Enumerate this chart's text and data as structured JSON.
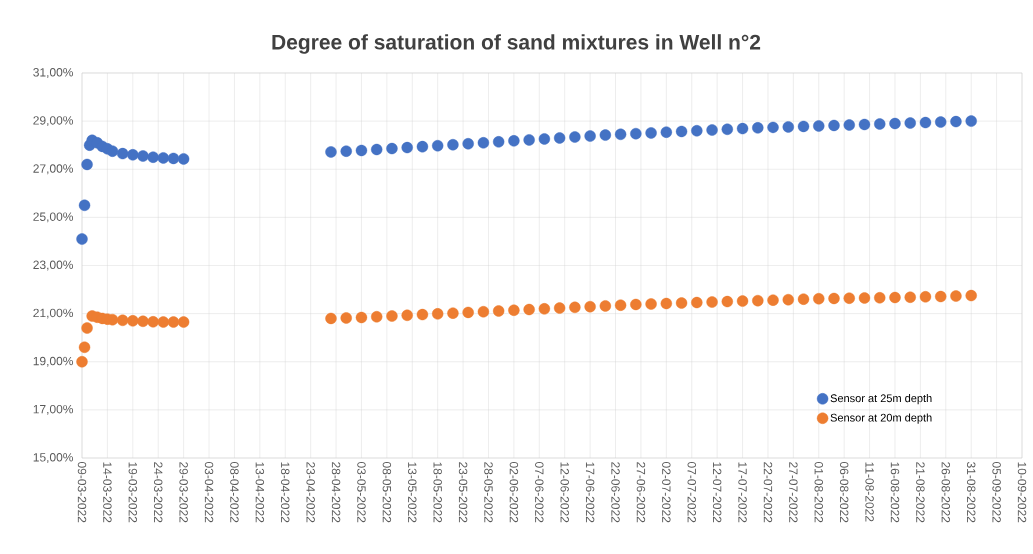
{
  "chart_data": {
    "type": "scatter",
    "title": "Degree of saturation of sand mixtures in Well n°2",
    "x": [
      "2022-03-09",
      "2022-03-09T12:00",
      "2022-03-10",
      "2022-03-10T12:00",
      "2022-03-11",
      "2022-03-12",
      "2022-03-13",
      "2022-03-14",
      "2022-03-15",
      "2022-03-17",
      "2022-03-19",
      "2022-03-21",
      "2022-03-23",
      "2022-03-25",
      "2022-03-27",
      "2022-03-29",
      "2022-04-27",
      "2022-04-30",
      "2022-05-03",
      "2022-05-06",
      "2022-05-09",
      "2022-05-12",
      "2022-05-15",
      "2022-05-18",
      "2022-05-21",
      "2022-05-24",
      "2022-05-27",
      "2022-05-30",
      "2022-06-02",
      "2022-06-05",
      "2022-06-08",
      "2022-06-11",
      "2022-06-14",
      "2022-06-17",
      "2022-06-20",
      "2022-06-23",
      "2022-06-26",
      "2022-06-29",
      "2022-07-02",
      "2022-07-05",
      "2022-07-08",
      "2022-07-11",
      "2022-07-14",
      "2022-07-17",
      "2022-07-20",
      "2022-07-23",
      "2022-07-26",
      "2022-07-29",
      "2022-08-01",
      "2022-08-04",
      "2022-08-07",
      "2022-08-10",
      "2022-08-13",
      "2022-08-16",
      "2022-08-19",
      "2022-08-22",
      "2022-08-25",
      "2022-08-28",
      "2022-08-31"
    ],
    "series": [
      {
        "name": "Sensor at 25m depth",
        "color": "#4472c4",
        "values": [
          24.1,
          25.5,
          27.2,
          28.0,
          28.2,
          28.1,
          27.95,
          27.85,
          27.75,
          27.65,
          27.6,
          27.55,
          27.5,
          27.47,
          27.45,
          27.43,
          27.72,
          27.75,
          27.78,
          27.82,
          27.86,
          27.9,
          27.94,
          27.98,
          28.02,
          28.06,
          28.1,
          28.14,
          28.18,
          28.22,
          28.26,
          28.3,
          28.34,
          28.38,
          28.42,
          28.45,
          28.48,
          28.51,
          28.54,
          28.57,
          28.6,
          28.63,
          28.66,
          28.69,
          28.72,
          28.74,
          28.76,
          28.78,
          28.8,
          28.82,
          28.84,
          28.86,
          28.88,
          28.9,
          28.92,
          28.94,
          28.96,
          28.98,
          29.0
        ]
      },
      {
        "name": "Sensor at 20m depth",
        "color": "#ed7d31",
        "values": [
          19.0,
          19.6,
          20.4,
          null,
          20.9,
          20.85,
          20.8,
          20.77,
          20.75,
          20.72,
          20.7,
          20.68,
          20.66,
          20.65,
          20.65,
          20.65,
          20.8,
          20.82,
          20.84,
          20.87,
          20.9,
          20.93,
          20.96,
          20.99,
          21.02,
          21.05,
          21.08,
          21.11,
          21.14,
          21.17,
          21.2,
          21.23,
          21.26,
          21.29,
          21.32,
          21.35,
          21.38,
          21.4,
          21.42,
          21.44,
          21.46,
          21.48,
          21.5,
          21.52,
          21.54,
          21.56,
          21.58,
          21.6,
          21.62,
          21.63,
          21.64,
          21.65,
          21.66,
          21.67,
          21.68,
          21.7,
          21.71,
          21.73,
          21.75
        ]
      }
    ],
    "xlim": [
      "2022-03-09",
      "2022-09-10"
    ],
    "xticks": [
      {
        "value": "2022-03-09",
        "label": "09-03-2022"
      },
      {
        "value": "2022-03-14",
        "label": "14-03-2022"
      },
      {
        "value": "2022-03-19",
        "label": "19-03-2022"
      },
      {
        "value": "2022-03-24",
        "label": "24-03-2022"
      },
      {
        "value": "2022-03-29",
        "label": "29-03-2022"
      },
      {
        "value": "2022-04-03",
        "label": "03-04-2022"
      },
      {
        "value": "2022-04-08",
        "label": "08-04-2022"
      },
      {
        "value": "2022-04-13",
        "label": "13-04-2022"
      },
      {
        "value": "2022-04-18",
        "label": "18-04-2022"
      },
      {
        "value": "2022-04-23",
        "label": "23-04-2022"
      },
      {
        "value": "2022-04-28",
        "label": "28-04-2022"
      },
      {
        "value": "2022-05-03",
        "label": "03-05-2022"
      },
      {
        "value": "2022-05-08",
        "label": "08-05-2022"
      },
      {
        "value": "2022-05-13",
        "label": "13-05-2022"
      },
      {
        "value": "2022-05-18",
        "label": "18-05-2022"
      },
      {
        "value": "2022-05-23",
        "label": "23-05-2022"
      },
      {
        "value": "2022-05-28",
        "label": "28-05-2022"
      },
      {
        "value": "2022-06-02",
        "label": "02-06-2022"
      },
      {
        "value": "2022-06-07",
        "label": "07-06-2022"
      },
      {
        "value": "2022-06-12",
        "label": "12-06-2022"
      },
      {
        "value": "2022-06-17",
        "label": "17-06-2022"
      },
      {
        "value": "2022-06-22",
        "label": "22-06-2022"
      },
      {
        "value": "2022-06-27",
        "label": "27-06-2022"
      },
      {
        "value": "2022-07-02",
        "label": "02-07-2022"
      },
      {
        "value": "2022-07-07",
        "label": "07-07-2022"
      },
      {
        "value": "2022-07-12",
        "label": "12-07-2022"
      },
      {
        "value": "2022-07-17",
        "label": "17-07-2022"
      },
      {
        "value": "2022-07-22",
        "label": "22-07-2022"
      },
      {
        "value": "2022-07-27",
        "label": "27-07-2022"
      },
      {
        "value": "2022-08-01",
        "label": "01-08-2022"
      },
      {
        "value": "2022-08-06",
        "label": "06-08-2022"
      },
      {
        "value": "2022-08-11",
        "label": "11-08-2022"
      },
      {
        "value": "2022-08-16",
        "label": "16-08-2022"
      },
      {
        "value": "2022-08-21",
        "label": "21-08-2022"
      },
      {
        "value": "2022-08-26",
        "label": "26-08-2022"
      },
      {
        "value": "2022-08-31",
        "label": "31-08-2022"
      },
      {
        "value": "2022-09-05",
        "label": "05-09-2022"
      },
      {
        "value": "2022-09-10",
        "label": "10-09-2022"
      }
    ],
    "ylim": [
      15,
      31
    ],
    "yticks": [
      {
        "value": 15,
        "label": "15,00%"
      },
      {
        "value": 17,
        "label": "17,00%"
      },
      {
        "value": 19,
        "label": "19,00%"
      },
      {
        "value": 21,
        "label": "21,00%"
      },
      {
        "value": 23,
        "label": "23,00%"
      },
      {
        "value": 25,
        "label": "25,00%"
      },
      {
        "value": 27,
        "label": "27,00%"
      },
      {
        "value": 29,
        "label": "29,00%"
      },
      {
        "value": 31,
        "label": "31,00%"
      }
    ],
    "grid": true,
    "legend": "bottom right",
    "marker": "circle"
  }
}
